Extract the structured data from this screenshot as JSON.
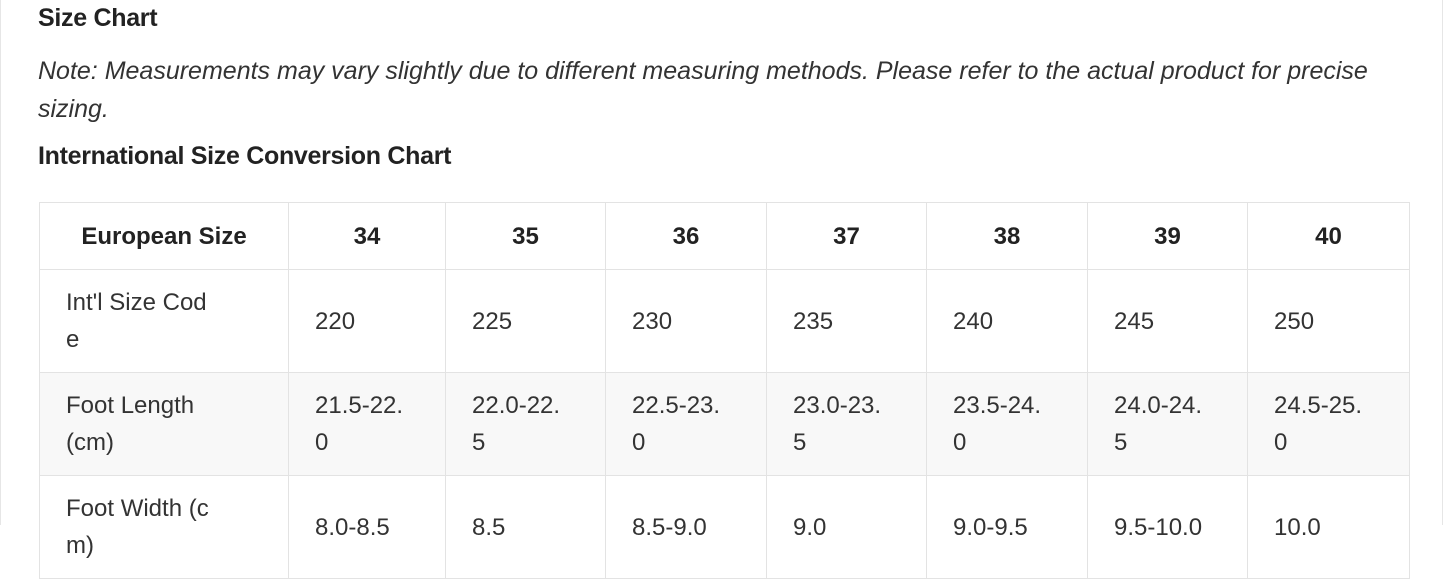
{
  "header": {
    "title": "Size Chart",
    "note": "Note: Measurements may vary slightly due to different measuring methods. Please refer to the actual product for precise sizing.",
    "subtitle": "International Size Conversion Chart"
  },
  "table": {
    "columns": [
      "European Size",
      "34",
      "35",
      "36",
      "37",
      "38",
      "39",
      "40"
    ],
    "rows": [
      [
        "Int'l Size Code",
        "220",
        "225",
        "230",
        "235",
        "240",
        "245",
        "250"
      ],
      [
        "Foot Length (cm)",
        "21.5-22.0",
        "22.0-22.5",
        "22.5-23.0",
        "23.0-23.5",
        "23.5-24.0",
        "24.0-24.5",
        "24.5-25.0"
      ],
      [
        "Foot Width (cm)",
        "8.0-8.5",
        "8.5",
        "8.5-9.0",
        "9.0",
        "9.0-9.5",
        "9.5-10.0",
        "10.0"
      ]
    ]
  }
}
